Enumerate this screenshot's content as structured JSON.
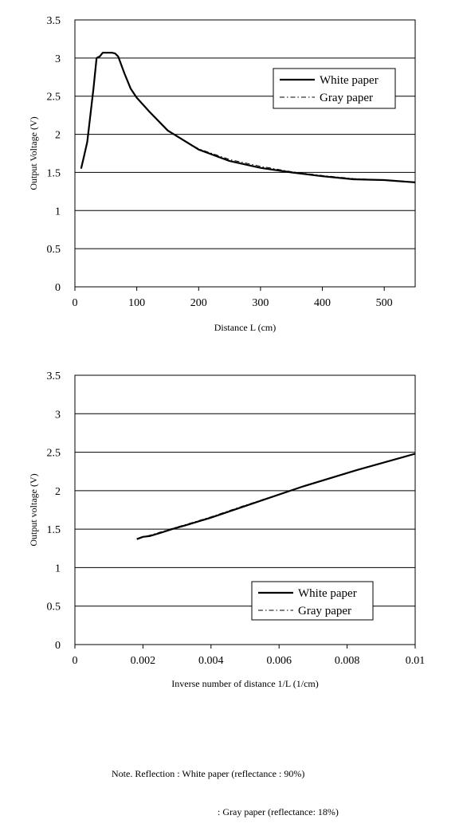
{
  "chart_data": [
    {
      "type": "line",
      "xlabel": "Distance L (cm)",
      "ylabel": "Output Voltage (V)",
      "xlim": [
        0,
        550
      ],
      "ylim": [
        0,
        3.5
      ],
      "xticks": [
        "0",
        "100",
        "200",
        "300",
        "400",
        "500"
      ],
      "yticks": [
        "0",
        "0.5",
        "1",
        "1.5",
        "2",
        "2.5",
        "3",
        "3.5"
      ],
      "grid": "horizontal",
      "legend": "top-right",
      "series": [
        {
          "name": "White paper",
          "style": "solid",
          "x": [
            10,
            15,
            20,
            25,
            30,
            35,
            40,
            45,
            50,
            55,
            60,
            65,
            70,
            80,
            90,
            100,
            120,
            150,
            200,
            250,
            300,
            350,
            400,
            450,
            500,
            550
          ],
          "y": [
            1.55,
            1.72,
            1.9,
            2.25,
            2.6,
            3.0,
            3.02,
            3.07,
            3.07,
            3.07,
            3.07,
            3.06,
            3.02,
            2.8,
            2.6,
            2.48,
            2.3,
            2.05,
            1.8,
            1.65,
            1.56,
            1.5,
            1.45,
            1.41,
            1.4,
            1.37
          ]
        },
        {
          "name": "Gray paper",
          "style": "dashdot",
          "x": [
            10,
            15,
            20,
            25,
            30,
            35,
            40,
            45,
            50,
            55,
            60,
            65,
            70,
            80,
            90,
            100,
            120,
            150,
            200,
            250,
            300,
            350,
            400,
            450,
            500,
            550
          ],
          "y": [
            1.55,
            1.72,
            1.9,
            2.25,
            2.6,
            3.0,
            3.02,
            3.07,
            3.07,
            3.07,
            3.07,
            3.06,
            3.02,
            2.8,
            2.6,
            2.48,
            2.3,
            2.05,
            1.81,
            1.67,
            1.58,
            1.51,
            1.46,
            1.42,
            1.4,
            1.37
          ]
        }
      ],
      "legend_entries": [
        "White paper",
        "Gray paper"
      ]
    },
    {
      "type": "line",
      "xlabel": "Inverse number of distance 1/L (1/cm)",
      "ylabel": "Output voltage (V)",
      "xlim": [
        0,
        0.01
      ],
      "ylim": [
        0,
        3.5
      ],
      "xticks": [
        "0",
        "0.002",
        "0.004",
        "0.006",
        "0.008",
        "0.01"
      ],
      "yticks": [
        "0",
        "0.5",
        "1",
        "1.5",
        "2",
        "2.5",
        "3",
        "3.5"
      ],
      "grid": "horizontal",
      "legend": "bottom-right",
      "series": [
        {
          "name": "White paper",
          "style": "solid",
          "x": [
            0.00182,
            0.002,
            0.0022,
            0.0025,
            0.00286,
            0.00333,
            0.004,
            0.005,
            0.00667,
            0.0083,
            0.01
          ],
          "y": [
            1.37,
            1.4,
            1.41,
            1.45,
            1.5,
            1.56,
            1.65,
            1.8,
            2.05,
            2.27,
            2.48
          ]
        },
        {
          "name": "Gray paper",
          "style": "dashdot",
          "x": [
            0.00182,
            0.002,
            0.0022,
            0.0025,
            0.00286,
            0.00333,
            0.004,
            0.005,
            0.00667,
            0.0083,
            0.01
          ],
          "y": [
            1.37,
            1.4,
            1.42,
            1.46,
            1.51,
            1.57,
            1.66,
            1.81,
            2.05,
            2.27,
            2.48
          ]
        }
      ],
      "legend_entries": [
        "White paper",
        "Gray paper"
      ]
    }
  ],
  "note": {
    "line1": "Note. Reflection : White paper (reflectance : 90%)",
    "line2": ": Gray paper (reflectance: 18%)"
  }
}
